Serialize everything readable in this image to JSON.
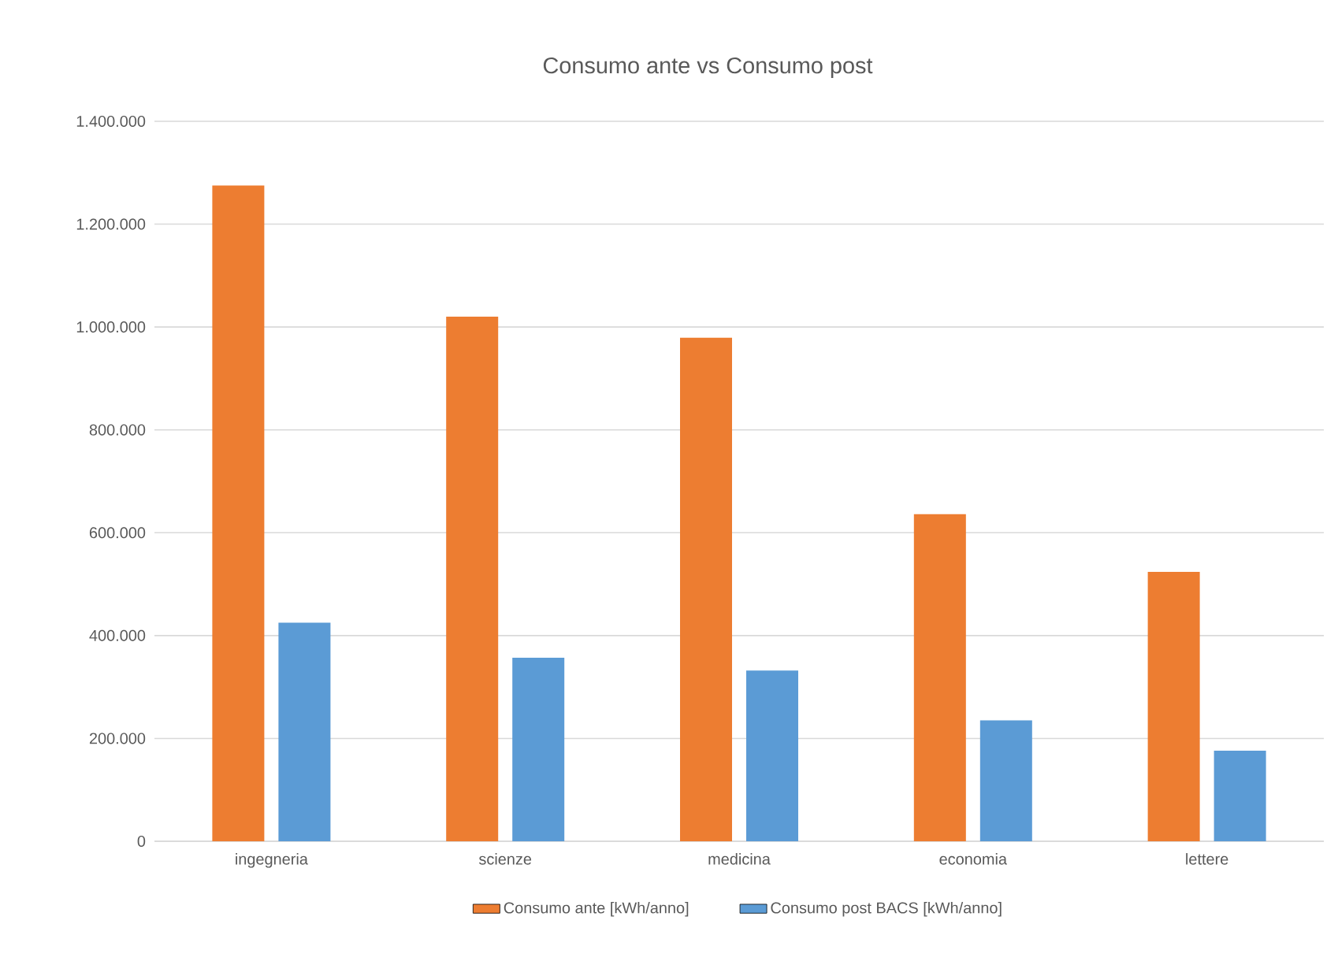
{
  "chart_data": {
    "type": "bar",
    "title": "Consumo ante vs Consumo post",
    "categories": [
      "ingegneria",
      "scienze",
      "medicina",
      "economia",
      "lettere"
    ],
    "series": [
      {
        "name": "Consumo ante [kWh/anno]",
        "color": "#ed7d31",
        "values": [
          1275000,
          1020000,
          979000,
          636000,
          524000
        ]
      },
      {
        "name": "Consumo post BACS [kWh/anno]",
        "color": "#5b9bd5",
        "values": [
          425000,
          357000,
          332000,
          235000,
          176000
        ]
      }
    ],
    "ylim": [
      0,
      1400000
    ],
    "yticks": [
      0,
      {
        "value": 200000,
        "label": "200.000"
      },
      {
        "value": 400000,
        "label": "400.000"
      },
      {
        "value": 600000,
        "label": "600.000"
      },
      {
        "value": 800000,
        "label": "800.000"
      },
      {
        "value": 1000000,
        "label": "1.000.000"
      },
      {
        "value": 1200000,
        "label": "1.200.000"
      },
      {
        "value": 1400000,
        "label": "1.400.000"
      }
    ],
    "grid": "y",
    "legend": "bottom"
  }
}
